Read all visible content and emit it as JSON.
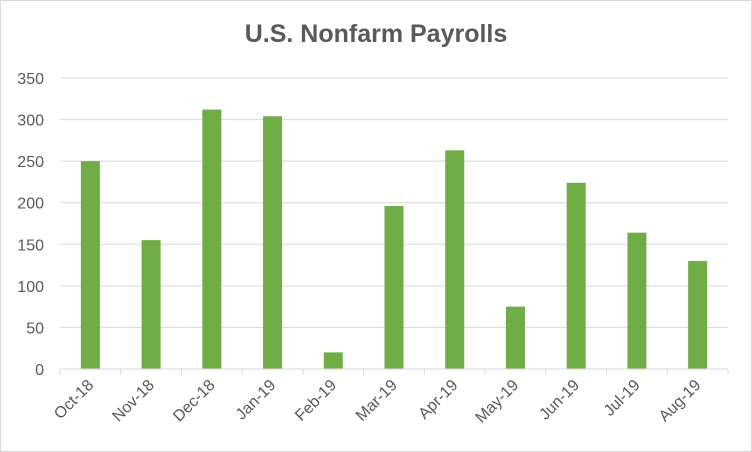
{
  "chart_data": {
    "type": "bar",
    "title": "U.S. Nonfarm Payrolls",
    "xlabel": "",
    "ylabel": "",
    "categories": [
      "Oct-18",
      "Nov-18",
      "Dec-18",
      "Jan-19",
      "Feb-19",
      "Mar-19",
      "Apr-19",
      "May-19",
      "Jun-19",
      "Jul-19",
      "Aug-19"
    ],
    "values": [
      250,
      155,
      312,
      304,
      20,
      196,
      263,
      75,
      224,
      164,
      130
    ],
    "ylim": [
      0,
      350
    ],
    "yticks": [
      0,
      50,
      100,
      150,
      200,
      250,
      300,
      350
    ],
    "grid": true,
    "legend": "none",
    "colors": {
      "bar": "#70ad47",
      "grid": "#d9d9d9",
      "text": "#595959"
    }
  }
}
